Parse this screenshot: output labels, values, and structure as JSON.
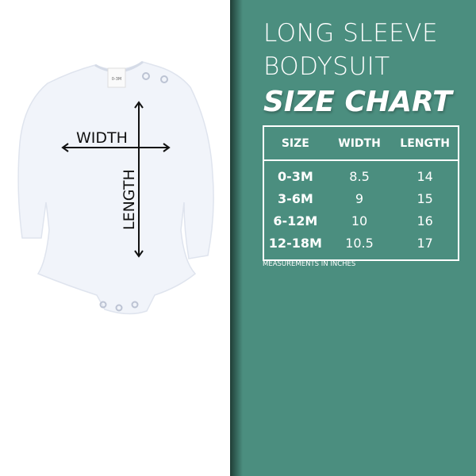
{
  "title": {
    "line1": "LONG SLEEVE",
    "line2": "BODYSUIT",
    "line3": "SIZE CHART"
  },
  "table": {
    "headers": [
      "SIZE",
      "WIDTH",
      "LENGTH"
    ],
    "rows": [
      [
        "0-3M",
        "8.5",
        "14"
      ],
      [
        "3-6M",
        "9",
        "15"
      ],
      [
        "6-12M",
        "10",
        "16"
      ],
      [
        "12-18M",
        "10.5",
        "17"
      ]
    ]
  },
  "note": "MEASUREMENTS IN INCHES",
  "diagram": {
    "width_label": "WIDTH",
    "length_label": "LENGTH",
    "tag_size": "0-3M"
  },
  "colors": {
    "panel": "#4b8e7f",
    "text": "#ffffff"
  }
}
